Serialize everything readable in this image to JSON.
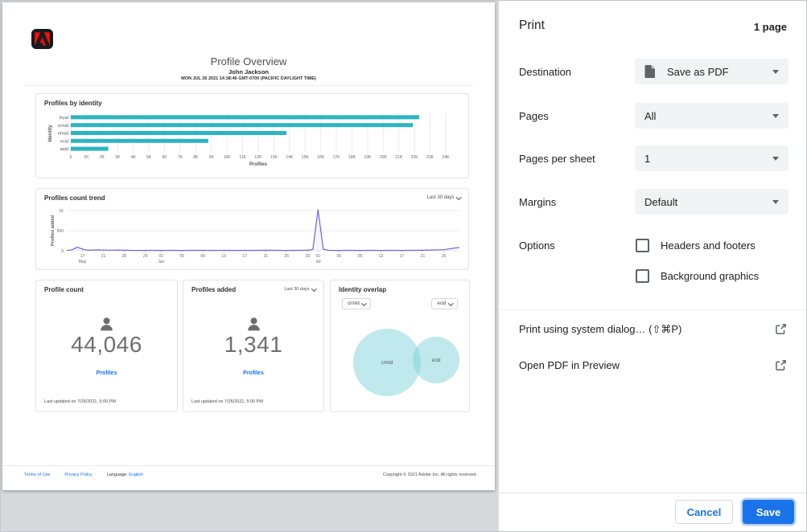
{
  "colors": {
    "adobe_red": "#fa0f00",
    "bar_teal": "#2bb5bf",
    "trend_indigo": "#6968e1",
    "chrome_blue": "#1a73e8",
    "adobe_link_blue": "#1473e6"
  },
  "preview_page": {
    "title": "Profile Overview",
    "author": "John Jackson",
    "timestamp": "MON JUL 26 2021 14:38:46 GMT-0700 (PACIFIC DAYLIGHT TIME)",
    "profile_count_card": {
      "title": "Profile count",
      "value": "44,046",
      "link": "Profiles",
      "last_updated": "Last updated on 7/25/2021, 5:00 PM"
    },
    "profiles_added_card": {
      "title": "Profiles added",
      "range": "Last 30 days",
      "value": "1,341",
      "link": "Profiles",
      "last_updated": "Last updated on 7/25/2021, 5:00 PM"
    },
    "footer": {
      "terms": "Terms of Use",
      "privacy": "Privacy Policy",
      "language_label": "Language:",
      "language_value": "English",
      "copyright": "Copyright © 2021 Adobe Inc. All rights reserved."
    }
  },
  "chart_data": [
    {
      "id": "profiles-by-identity",
      "type": "bar",
      "orientation": "horizontal",
      "title": "Profiles by identity",
      "categories": [
        "loyal",
        "crmid",
        "email",
        "ecid",
        "aaid"
      ],
      "values": [
        22300,
        21900,
        13800,
        8800,
        2400
      ],
      "xlabel": "Profiles",
      "ylabel": "Identity",
      "xlim": [
        0,
        24000
      ],
      "xtick_labels": [
        "0",
        "1K",
        "2K",
        "3K",
        "4K",
        "5K",
        "6K",
        "7K",
        "8K",
        "9K",
        "10K",
        "11K",
        "12K",
        "13K",
        "14K",
        "15K",
        "16K",
        "17K",
        "18K",
        "19K",
        "20K",
        "21K",
        "22K",
        "23K",
        "24K"
      ],
      "grid": true,
      "bar_color": "#2bb5bf"
    },
    {
      "id": "profiles-count-trend",
      "type": "line",
      "title": "Profiles count trend",
      "range_label": "Last 30 days",
      "ylabel": "Profiles added",
      "ylim": [
        0,
        1100
      ],
      "yticks": [
        {
          "v": 0,
          "label": "0"
        },
        {
          "v": 500,
          "label": "500"
        },
        {
          "v": 1000,
          "label": "1K"
        }
      ],
      "x_range_days": 75,
      "xticks": [
        {
          "d": 3,
          "label": "17",
          "month": "May"
        },
        {
          "d": 7,
          "label": "21"
        },
        {
          "d": 11,
          "label": "25"
        },
        {
          "d": 15,
          "label": "29"
        },
        {
          "d": 18,
          "label": "01",
          "month": "Jun"
        },
        {
          "d": 22,
          "label": "05"
        },
        {
          "d": 26,
          "label": "09"
        },
        {
          "d": 30,
          "label": "13"
        },
        {
          "d": 34,
          "label": "17"
        },
        {
          "d": 38,
          "label": "21"
        },
        {
          "d": 42,
          "label": "25"
        },
        {
          "d": 46,
          "label": "29"
        },
        {
          "d": 48,
          "label": "01",
          "month": "Jul"
        },
        {
          "d": 52,
          "label": "05"
        },
        {
          "d": 56,
          "label": "09"
        },
        {
          "d": 60,
          "label": "13"
        },
        {
          "d": 64,
          "label": "17"
        },
        {
          "d": 68,
          "label": "21"
        },
        {
          "d": 72,
          "label": "25"
        }
      ],
      "points": [
        [
          0,
          6
        ],
        [
          1,
          25
        ],
        [
          2,
          88
        ],
        [
          3,
          40
        ],
        [
          4,
          12
        ],
        [
          6,
          22
        ],
        [
          8,
          14
        ],
        [
          10,
          17
        ],
        [
          12,
          10
        ],
        [
          14,
          8
        ],
        [
          16,
          10
        ],
        [
          18,
          8
        ],
        [
          20,
          9
        ],
        [
          22,
          8
        ],
        [
          24,
          10
        ],
        [
          26,
          11
        ],
        [
          28,
          8
        ],
        [
          30,
          10
        ],
        [
          32,
          8
        ],
        [
          34,
          10
        ],
        [
          36,
          8
        ],
        [
          38,
          13
        ],
        [
          40,
          9
        ],
        [
          42,
          8
        ],
        [
          44,
          10
        ],
        [
          46,
          12
        ],
        [
          47,
          30
        ],
        [
          48,
          1020
        ],
        [
          49,
          40
        ],
        [
          50,
          10
        ],
        [
          52,
          8
        ],
        [
          54,
          10
        ],
        [
          56,
          8
        ],
        [
          58,
          10
        ],
        [
          60,
          8
        ],
        [
          62,
          10
        ],
        [
          64,
          8
        ],
        [
          66,
          9
        ],
        [
          68,
          13
        ],
        [
          70,
          17
        ],
        [
          72,
          26
        ],
        [
          75,
          85
        ]
      ],
      "grid": true,
      "line_color": "#6968e1"
    },
    {
      "id": "identity-overlap",
      "type": "venn",
      "title": "Identity overlap",
      "selectors": [
        "crmid",
        "ecid"
      ],
      "sets": [
        {
          "name": "crmid",
          "radius": 42
        },
        {
          "name": "ecid",
          "radius": 29
        }
      ],
      "overlap": "small",
      "fill_color": "#7fd4da"
    }
  ],
  "print_panel": {
    "title": "Print",
    "page_count": "1 page",
    "destination": {
      "label": "Destination",
      "value": "Save as PDF",
      "icon": "pdf-document-icon"
    },
    "pages": {
      "label": "Pages",
      "value": "All"
    },
    "pages_per_sheet": {
      "label": "Pages per sheet",
      "value": "1"
    },
    "margins": {
      "label": "Margins",
      "value": "Default"
    },
    "options": {
      "label": "Options",
      "items": [
        {
          "label": "Headers and footers",
          "checked": false
        },
        {
          "label": "Background graphics",
          "checked": false
        }
      ]
    },
    "system_dialog_link": "Print using system dialog… (⇧⌘P)",
    "open_pdf_link": "Open PDF in Preview",
    "cancel": "Cancel",
    "save": "Save"
  }
}
